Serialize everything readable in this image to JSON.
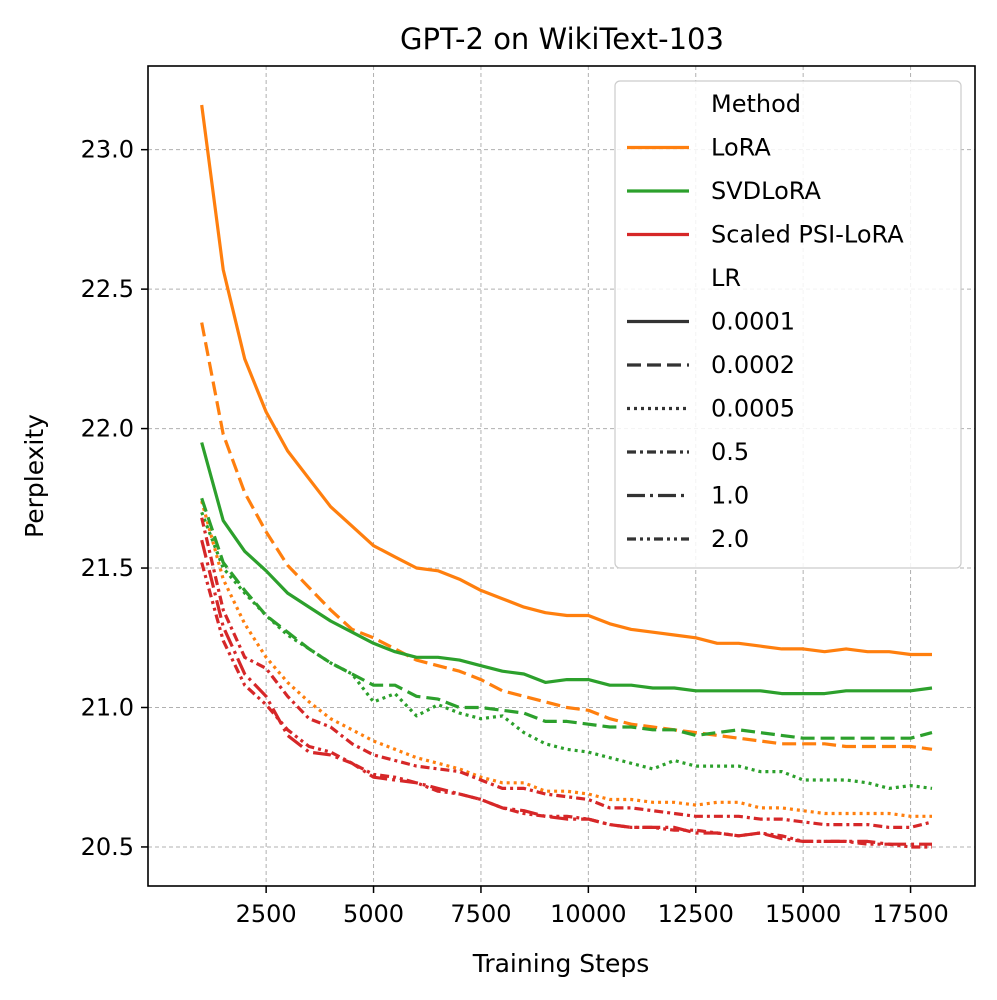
{
  "chart_data": {
    "type": "line",
    "title": "GPT-2 on WikiText-103",
    "xlabel": "Training Steps",
    "ylabel": "Perplexity",
    "xlim": [
      -250,
      19000
    ],
    "ylim": [
      20.36,
      23.3
    ],
    "xticks": [
      2500,
      5000,
      7500,
      10000,
      12500,
      15000,
      17500
    ],
    "yticks": [
      20.5,
      21.0,
      21.5,
      22.0,
      22.5,
      23.0
    ],
    "ytick_labels": [
      "20.5",
      "21.0",
      "21.5",
      "22.0",
      "22.5",
      "23.0"
    ],
    "grid": true,
    "legend": {
      "placement": "top-right",
      "method_title": "Method",
      "lr_title": "LR",
      "methods": [
        {
          "name": "LoRA",
          "color": "#ff7f0e"
        },
        {
          "name": "SVDLoRA",
          "color": "#2ca02c"
        },
        {
          "name": "Scaled PSI-LoRA",
          "color": "#d62728"
        }
      ],
      "lrs": [
        {
          "name": "0.0001",
          "dash": "solid"
        },
        {
          "name": "0.0002",
          "dash": "dashed"
        },
        {
          "name": "0.0005",
          "dash": "dotted"
        },
        {
          "name": "0.5",
          "dash": "dashdot_short"
        },
        {
          "name": "1.0",
          "dash": "dashdot_long"
        },
        {
          "name": "2.0",
          "dash": "dashdotdot"
        }
      ]
    },
    "x": [
      1000,
      1500,
      2000,
      2500,
      3000,
      3500,
      4000,
      4500,
      5000,
      5500,
      6000,
      6500,
      7000,
      7500,
      8000,
      8500,
      9000,
      9500,
      10000,
      10500,
      11000,
      11500,
      12000,
      12500,
      13000,
      13500,
      14000,
      14500,
      15000,
      15500,
      16000,
      16500,
      17000,
      17500,
      18000
    ],
    "series": [
      {
        "name": "LoRA lr=0.0001",
        "method": "LoRA",
        "lr": "0.0001",
        "color": "#ff7f0e",
        "dash": "solid",
        "values": [
          23.16,
          22.57,
          22.25,
          22.06,
          21.92,
          21.82,
          21.72,
          21.65,
          21.58,
          21.54,
          21.5,
          21.49,
          21.46,
          21.42,
          21.39,
          21.36,
          21.34,
          21.33,
          21.33,
          21.3,
          21.28,
          21.27,
          21.26,
          21.25,
          21.23,
          21.23,
          21.22,
          21.21,
          21.21,
          21.2,
          21.21,
          21.2,
          21.2,
          21.19,
          21.19
        ]
      },
      {
        "name": "LoRA lr=0.0002",
        "method": "LoRA",
        "lr": "0.0002",
        "color": "#ff7f0e",
        "dash": "dashed",
        "values": [
          22.38,
          21.98,
          21.77,
          21.63,
          21.51,
          21.43,
          21.35,
          21.28,
          21.25,
          21.21,
          21.17,
          21.15,
          21.13,
          21.1,
          21.06,
          21.04,
          21.02,
          21.0,
          20.99,
          20.96,
          20.94,
          20.93,
          20.92,
          20.91,
          20.9,
          20.89,
          20.88,
          20.87,
          20.87,
          20.87,
          20.86,
          20.86,
          20.86,
          20.86,
          20.85
        ]
      },
      {
        "name": "LoRA lr=0.0005",
        "method": "LoRA",
        "lr": "0.0005",
        "color": "#ff7f0e",
        "dash": "dotted",
        "values": [
          21.74,
          21.46,
          21.3,
          21.18,
          21.09,
          21.02,
          20.96,
          20.92,
          20.88,
          20.85,
          20.82,
          20.8,
          20.78,
          20.75,
          20.73,
          20.73,
          20.7,
          20.7,
          20.69,
          20.67,
          20.67,
          20.66,
          20.66,
          20.65,
          20.66,
          20.66,
          20.64,
          20.64,
          20.63,
          20.62,
          20.62,
          20.62,
          20.62,
          20.61,
          20.61
        ]
      },
      {
        "name": "SVDLoRA lr=0.0001",
        "method": "SVDLoRA",
        "lr": "0.0001",
        "color": "#2ca02c",
        "dash": "solid",
        "values": [
          21.95,
          21.67,
          21.56,
          21.49,
          21.41,
          21.36,
          21.31,
          21.27,
          21.23,
          21.2,
          21.18,
          21.18,
          21.17,
          21.15,
          21.13,
          21.12,
          21.09,
          21.1,
          21.1,
          21.08,
          21.08,
          21.07,
          21.07,
          21.06,
          21.06,
          21.06,
          21.06,
          21.05,
          21.05,
          21.05,
          21.06,
          21.06,
          21.06,
          21.06,
          21.07
        ]
      },
      {
        "name": "SVDLoRA lr=0.0002",
        "method": "SVDLoRA",
        "lr": "0.0002",
        "color": "#2ca02c",
        "dash": "dashed",
        "values": [
          21.75,
          21.52,
          21.42,
          21.33,
          21.27,
          21.21,
          21.16,
          21.12,
          21.08,
          21.08,
          21.04,
          21.03,
          21.0,
          21.0,
          20.99,
          20.98,
          20.95,
          20.95,
          20.94,
          20.93,
          20.93,
          20.92,
          20.92,
          20.9,
          20.91,
          20.92,
          20.91,
          20.9,
          20.89,
          20.89,
          20.89,
          20.89,
          20.89,
          20.89,
          20.91
        ]
      },
      {
        "name": "SVDLoRA lr=0.0005",
        "method": "SVDLoRA",
        "lr": "0.0005",
        "color": "#2ca02c",
        "dash": "dotted",
        "values": [
          21.7,
          21.5,
          21.41,
          21.33,
          21.26,
          21.21,
          21.16,
          21.12,
          21.02,
          21.05,
          20.97,
          21.01,
          20.98,
          20.96,
          20.97,
          20.91,
          20.87,
          20.85,
          20.84,
          20.82,
          20.8,
          20.78,
          20.81,
          20.79,
          20.79,
          20.79,
          20.77,
          20.77,
          20.74,
          20.74,
          20.74,
          20.73,
          20.71,
          20.72,
          20.71
        ]
      },
      {
        "name": "Scaled PSI-LoRA lr=0.5",
        "method": "Scaled PSI-LoRA",
        "lr": "0.5",
        "color": "#d62728",
        "dash": "dashdot_short",
        "values": [
          21.68,
          21.35,
          21.18,
          21.14,
          21.04,
          20.96,
          20.93,
          20.87,
          20.83,
          20.81,
          20.79,
          20.78,
          20.77,
          20.74,
          20.71,
          20.71,
          20.69,
          20.68,
          20.67,
          20.64,
          20.64,
          20.63,
          20.62,
          20.61,
          20.61,
          20.61,
          20.6,
          20.6,
          20.59,
          20.58,
          20.58,
          20.58,
          20.57,
          20.57,
          20.59
        ]
      },
      {
        "name": "Scaled PSI-LoRA lr=1.0",
        "method": "Scaled PSI-LoRA",
        "lr": "1.0",
        "color": "#d62728",
        "dash": "dashdot_long",
        "values": [
          21.6,
          21.29,
          21.12,
          21.04,
          20.9,
          20.84,
          20.83,
          20.8,
          20.75,
          20.74,
          20.73,
          20.71,
          20.69,
          20.67,
          20.64,
          20.63,
          20.61,
          20.6,
          20.6,
          20.58,
          20.57,
          20.57,
          20.57,
          20.55,
          20.55,
          20.54,
          20.55,
          20.53,
          20.52,
          20.52,
          20.52,
          20.52,
          20.51,
          20.51,
          20.51
        ]
      },
      {
        "name": "Scaled PSI-LoRA lr=2.0",
        "method": "Scaled PSI-LoRA",
        "lr": "2.0",
        "color": "#d62728",
        "dash": "dashdotdot",
        "values": [
          21.52,
          21.24,
          21.08,
          21.01,
          20.92,
          20.86,
          20.84,
          20.8,
          20.76,
          20.75,
          20.73,
          20.7,
          20.69,
          20.67,
          20.64,
          20.62,
          20.61,
          20.61,
          20.6,
          20.58,
          20.57,
          20.57,
          20.56,
          20.56,
          20.55,
          20.54,
          20.55,
          20.54,
          20.52,
          20.52,
          20.52,
          20.51,
          20.51,
          20.5,
          20.5
        ]
      }
    ]
  }
}
